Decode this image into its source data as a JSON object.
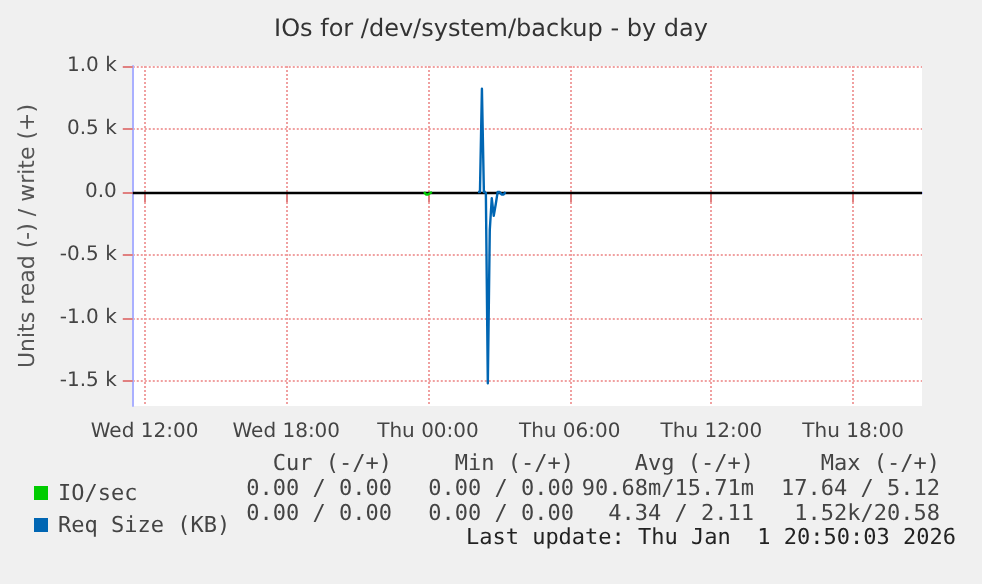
{
  "chart_data": {
    "type": "line",
    "title": "IOs for /dev/system/backup - by day",
    "ylabel": "Units read (-) / write (+)",
    "xlim": [
      "2025-12-31T11:30",
      "2026-01-01T20:55"
    ],
    "xticks": [
      {
        "value": "2025-12-31T12:00",
        "label": "Wed 12:00"
      },
      {
        "value": "2025-12-31T18:00",
        "label": "Wed 18:00"
      },
      {
        "value": "2026-01-01T00:00",
        "label": "Thu 00:00"
      },
      {
        "value": "2026-01-01T06:00",
        "label": "Thu 06:00"
      },
      {
        "value": "2026-01-01T12:00",
        "label": "Thu 12:00"
      },
      {
        "value": "2026-01-01T18:00",
        "label": "Thu 18:00"
      }
    ],
    "ylim": [
      -1700,
      1000
    ],
    "yticks": [
      {
        "value": -1500,
        "label": "-1.5 k"
      },
      {
        "value": -1000,
        "label": "-1.0 k"
      },
      {
        "value": -500,
        "label": "-0.5 k"
      },
      {
        "value": 0,
        "label": "0.0"
      },
      {
        "value": 500,
        "label": "0.5 k"
      },
      {
        "value": 1000,
        "label": "1.0 k"
      }
    ],
    "series": [
      {
        "name": "IO/sec",
        "color": "#00cc00",
        "x": [
          "2025-12-31T23:50",
          "2025-12-31T23:55",
          "2026-01-01T00:00",
          "2026-01-01T00:05",
          "2026-01-01T00:10"
        ],
        "values": [
          0,
          -20,
          -20,
          -10,
          0
        ]
      },
      {
        "name": "Req Size (KB)",
        "color": "#0066b3",
        "x": [
          "2026-01-01T02:07",
          "2026-01-01T02:12",
          "2026-01-01T02:17",
          "2026-01-01T02:22",
          "2026-01-01T02:27"
        ],
        "values": [
          0,
          0,
          820,
          0,
          0
        ]
      },
      {
        "color": "#0066b3",
        "x": [
          "2026-01-01T02:27",
          "2026-01-01T02:32",
          "2026-01-01T02:37",
          "2026-01-01T02:42",
          "2026-01-01T02:47",
          "2026-01-01T02:52",
          "2026-01-01T02:57",
          "2026-01-01T03:02",
          "2026-01-01T03:07",
          "2026-01-01T03:12",
          "2026-01-01T03:17"
        ],
        "values": [
          0,
          -1520,
          -300,
          -50,
          -190,
          -100,
          0,
          0,
          -20,
          -20,
          0
        ]
      }
    ],
    "ref_lines": [
      {
        "axis": "y",
        "value": 0,
        "color": "#000000"
      }
    ],
    "grid": true,
    "legend": "bottom left",
    "marker": "none",
    "line_style": "solid",
    "annotations": [
      "Cur (-/+)",
      "Min (-/+)",
      "Avg (-/+)",
      "Max (-/+)",
      "0.00 / 0.00",
      "0.00 / 0.00",
      "90.68m/15.71m",
      "17.64 / 5.12",
      "0.00 / 0.00",
      "0.00 / 0.00",
      "4.34 / 2.11",
      "1.52k/20.58",
      "Last update: Thu Jan  1 20:50:03 2026"
    ]
  }
}
